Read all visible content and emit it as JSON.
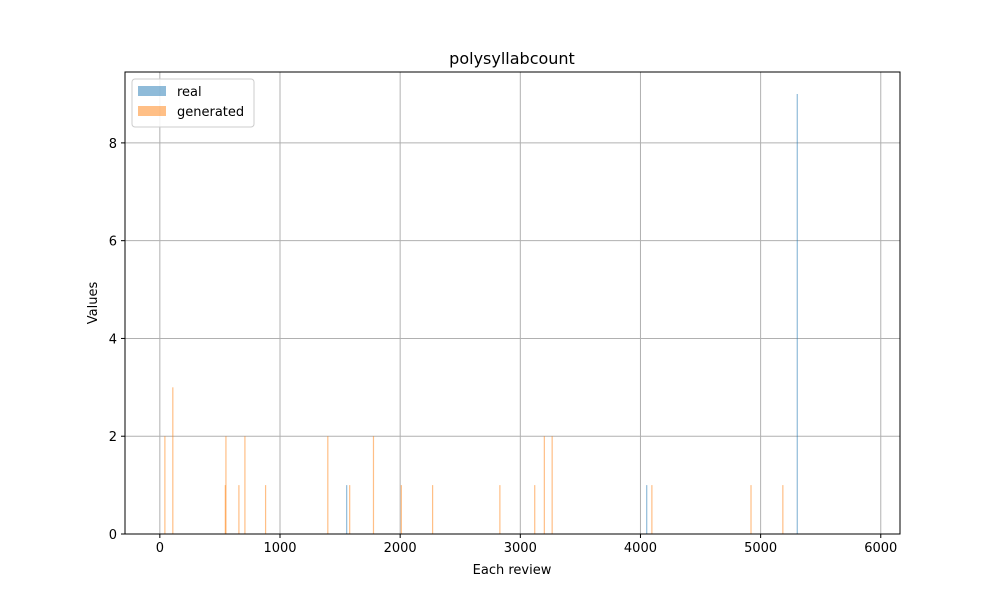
{
  "chart_data": {
    "type": "bar",
    "title": "polysyllabcount",
    "xlabel": "Each review",
    "ylabel": "Values",
    "xlim": [
      -290,
      6160
    ],
    "ylim": [
      0,
      9.45
    ],
    "xticks": [
      0,
      1000,
      2000,
      3000,
      4000,
      5000,
      6000
    ],
    "yticks": [
      0,
      2,
      4,
      6,
      8
    ],
    "grid": true,
    "legend_position": "top-left",
    "series": [
      {
        "name": "real",
        "color": "#1f77b4",
        "points": [
          {
            "x": 1555,
            "y": 1
          },
          {
            "x": 4052,
            "y": 1
          },
          {
            "x": 5305,
            "y": 9
          }
        ]
      },
      {
        "name": "generated",
        "color": "#ff7f0e",
        "points": [
          {
            "x": 42,
            "y": 2
          },
          {
            "x": 108,
            "y": 3
          },
          {
            "x": 545,
            "y": 1
          },
          {
            "x": 550,
            "y": 2
          },
          {
            "x": 658,
            "y": 1
          },
          {
            "x": 708,
            "y": 2
          },
          {
            "x": 880,
            "y": 1
          },
          {
            "x": 1398,
            "y": 2
          },
          {
            "x": 1580,
            "y": 1
          },
          {
            "x": 1778,
            "y": 2
          },
          {
            "x": 2010,
            "y": 1
          },
          {
            "x": 2270,
            "y": 1
          },
          {
            "x": 2830,
            "y": 1
          },
          {
            "x": 3120,
            "y": 1
          },
          {
            "x": 3200,
            "y": 2
          },
          {
            "x": 3265,
            "y": 2
          },
          {
            "x": 4095,
            "y": 1
          },
          {
            "x": 4920,
            "y": 1
          },
          {
            "x": 5185,
            "y": 1
          }
        ]
      }
    ]
  }
}
